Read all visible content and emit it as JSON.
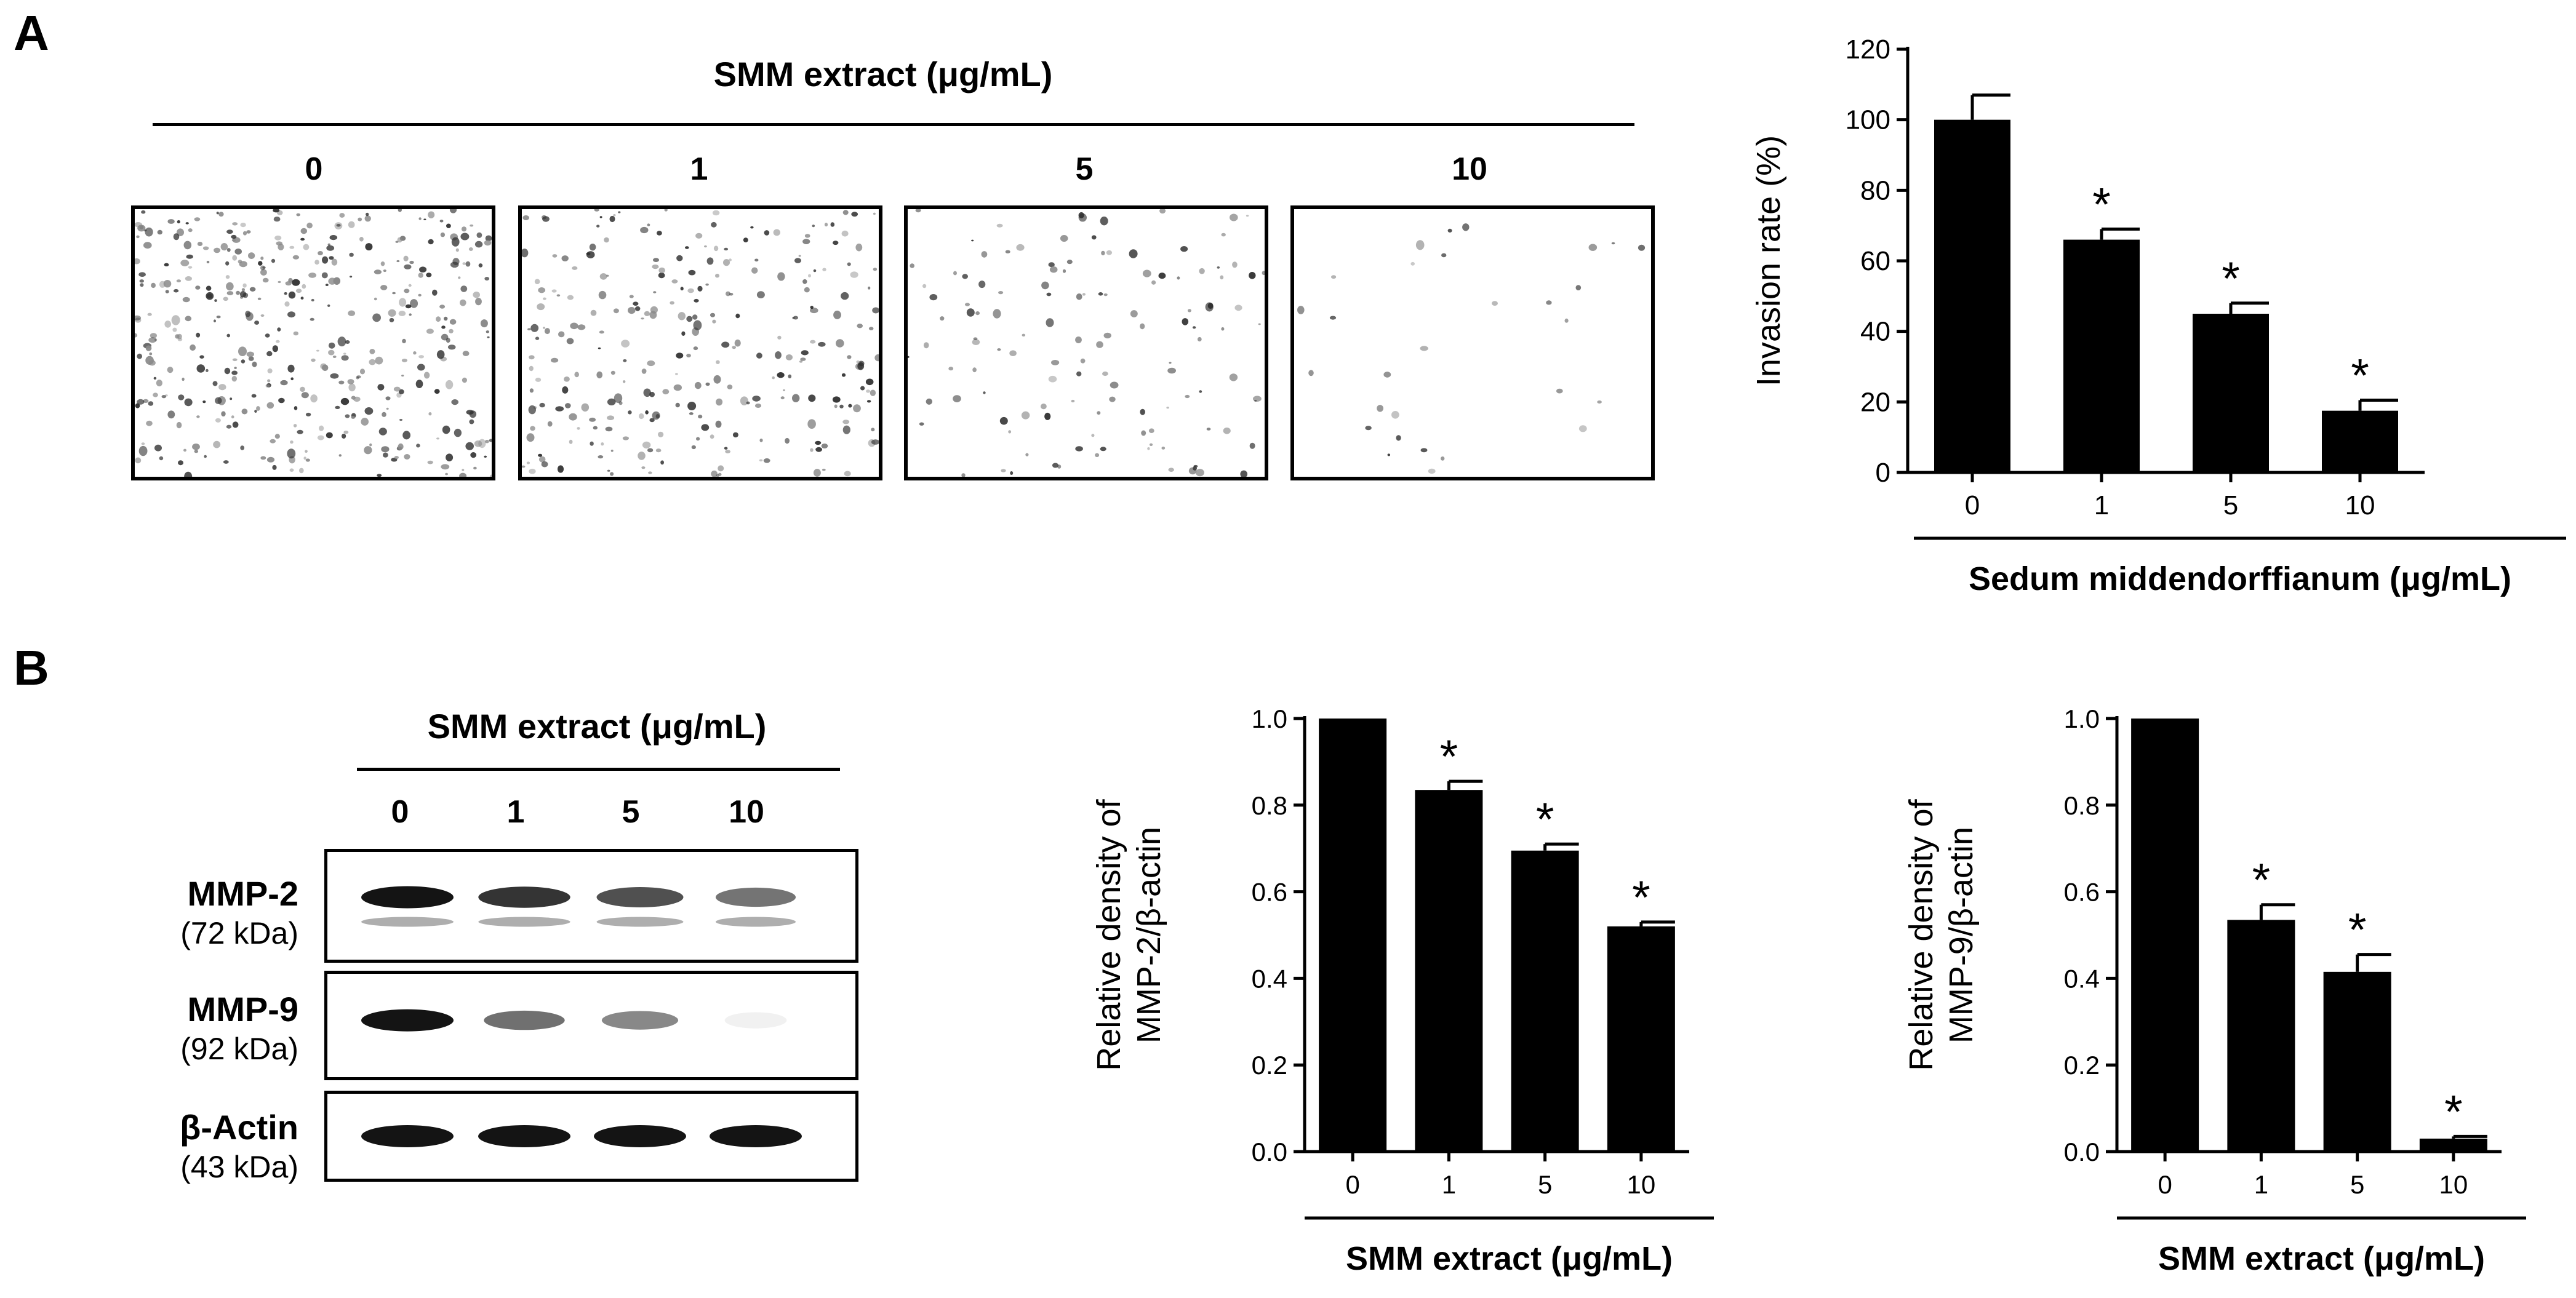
{
  "panel_a": {
    "letter": "A",
    "header": "SMM extract (μg/mL)",
    "concentrations": [
      "0",
      "1",
      "5",
      "10"
    ],
    "micrograph_cell_density": [
      1.0,
      0.66,
      0.3,
      0.07
    ]
  },
  "panel_b": {
    "letter": "B",
    "header": "SMM extract (μg/mL)",
    "concentrations": [
      "0",
      "1",
      "5",
      "10"
    ],
    "blots": [
      {
        "name": "MMP-2",
        "kda": "(72 kDa)",
        "band_intensity": [
          1.0,
          0.84,
          0.7,
          0.52
        ]
      },
      {
        "name": "MMP-9",
        "kda": "(92 kDa)",
        "band_intensity": [
          1.0,
          0.54,
          0.42,
          0.03
        ]
      },
      {
        "name": "β-Actin",
        "kda": "(43 kDa)",
        "band_intensity": [
          1.0,
          1.0,
          1.0,
          1.0
        ]
      }
    ]
  },
  "chart_data": [
    {
      "type": "bar",
      "categories": [
        "0",
        "1",
        "5",
        "10"
      ],
      "values": [
        100,
        66,
        45,
        17.5
      ],
      "errors": [
        7,
        3,
        3,
        3
      ],
      "significance": [
        "",
        "*",
        "*",
        "*"
      ],
      "title": "",
      "xlabel": "Sedum middendorffianum (μg/mL)",
      "ylabel": "Invasion rate (%)",
      "ylim": [
        0,
        120
      ],
      "yticks": [
        "0",
        "20",
        "40",
        "60",
        "80",
        "100",
        "120"
      ],
      "grid": false
    },
    {
      "type": "bar",
      "categories": [
        "0",
        "1",
        "5",
        "10"
      ],
      "values": [
        1.0,
        0.835,
        0.695,
        0.52
      ],
      "errors": [
        0,
        0.02,
        0.015,
        0.01
      ],
      "significance": [
        "",
        "*",
        "*",
        "*"
      ],
      "title": "",
      "xlabel": "SMM extract (μg/mL)",
      "ylabel": "Relative density of MMP-2/β-actin",
      "ylabel_lines": [
        "Relative density of",
        "MMP-2/β-actin"
      ],
      "ylim": [
        0,
        1.0
      ],
      "yticks": [
        "0.0",
        "0.2",
        "0.4",
        "0.6",
        "0.8",
        "1.0"
      ],
      "grid": false
    },
    {
      "type": "bar",
      "categories": [
        "0",
        "1",
        "5",
        "10"
      ],
      "values": [
        1.0,
        0.535,
        0.415,
        0.03
      ],
      "errors": [
        0,
        0.035,
        0.04,
        0.005
      ],
      "significance": [
        "",
        "*",
        "*",
        "*"
      ],
      "title": "",
      "xlabel": "SMM extract (μg/mL)",
      "ylabel": "Relative density of MMP-9/β-actin",
      "ylabel_lines": [
        "Relative density of",
        "MMP-9/β-actin"
      ],
      "ylim": [
        0,
        1.0
      ],
      "yticks": [
        "0.0",
        "0.2",
        "0.4",
        "0.6",
        "0.8",
        "1.0"
      ],
      "grid": false
    }
  ]
}
